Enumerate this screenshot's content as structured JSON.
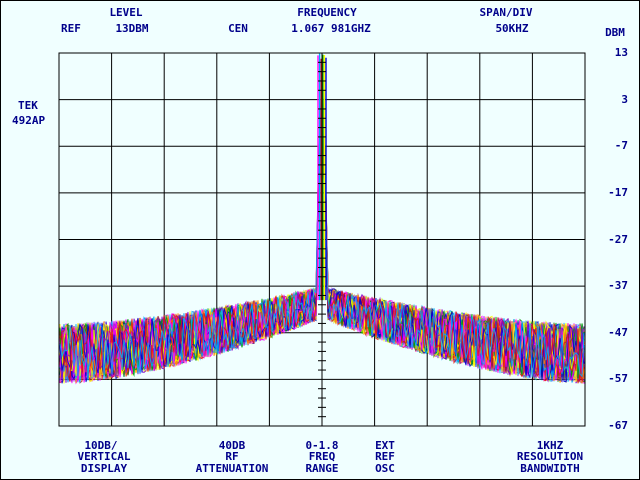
{
  "header": {
    "level_label": "LEVEL",
    "level_value": "13DBM",
    "ref_label": "REF",
    "frequency_label": "FREQUENCY",
    "frequency_value": "1.067 981GHZ",
    "cen_label": "CEN",
    "span_label": "SPAN/DIV",
    "span_value": "50KHZ",
    "unit_label": "DBM"
  },
  "instrument": {
    "make": "TEK",
    "model": "492AP"
  },
  "y_ticks": [
    "13",
    "3",
    "-7",
    "-17",
    "-27",
    "-37",
    "-47",
    "-57",
    "-67"
  ],
  "footer": {
    "vertical_display": [
      "10DB/",
      "VERTICAL",
      "DISPLAY"
    ],
    "rf_attenuation": [
      "40DB",
      "RF",
      "ATTENUATION"
    ],
    "freq_range": [
      "0-1.8",
      "FREQ",
      "RANGE"
    ],
    "ext_ref": [
      "EXT",
      "REF",
      "OSC"
    ],
    "resolution_bandwidth": [
      "1KHZ",
      "RESOLUTION",
      "BANDWIDTH"
    ]
  },
  "chart_data": {
    "type": "line",
    "ylim": [
      -67,
      13
    ],
    "y_unit": "DBM",
    "y_per_div": 10,
    "x_per_div_khz": 50,
    "x_divisions": 10,
    "center_frequency_ghz": 1.067981,
    "carrier_peak_dbm": 13,
    "noise_floor_edges_dbm": [
      -58,
      -45
    ],
    "noise_floor_center_dbm": [
      -44,
      -37
    ],
    "grid": true,
    "trace_colors": [
      "#ff00ff",
      "#0000cc",
      "#e01010",
      "#00aaff",
      "#00a000",
      "#ff8800",
      "#ffff00",
      "#8800cc"
    ]
  }
}
